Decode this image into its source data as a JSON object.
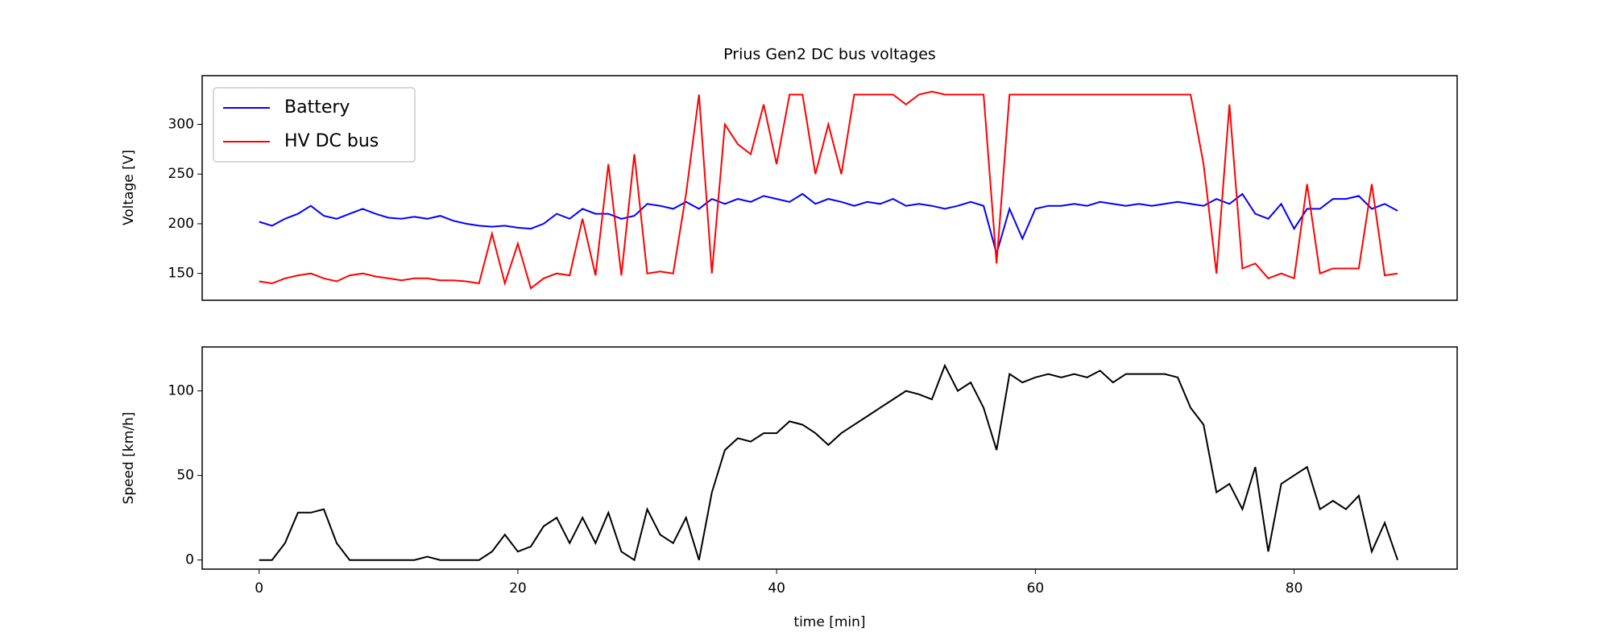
{
  "chart_data": [
    {
      "type": "line",
      "title": "Prius Gen2 DC bus voltages",
      "ylabel": "Voltage [V]",
      "x": [
        0,
        1,
        2,
        3,
        4,
        5,
        6,
        7,
        8,
        9,
        10,
        11,
        12,
        13,
        14,
        15,
        16,
        17,
        18,
        19,
        20,
        21,
        22,
        23,
        24,
        25,
        26,
        27,
        28,
        29,
        30,
        31,
        32,
        33,
        34,
        35,
        36,
        37,
        38,
        39,
        40,
        41,
        42,
        43,
        44,
        45,
        46,
        47,
        48,
        49,
        50,
        51,
        52,
        53,
        54,
        55,
        56,
        57,
        58,
        59,
        60,
        61,
        62,
        63,
        64,
        65,
        66,
        67,
        68,
        69,
        70,
        71,
        72,
        73,
        74,
        75,
        76,
        77,
        78,
        79,
        80,
        81,
        82,
        83,
        84,
        85,
        86,
        87,
        88
      ],
      "series": [
        {
          "name": "Battery",
          "color": "#0000ff",
          "values": [
            202,
            198,
            205,
            210,
            218,
            208,
            205,
            210,
            215,
            210,
            206,
            205,
            207,
            205,
            208,
            203,
            200,
            198,
            197,
            198,
            196,
            195,
            200,
            210,
            205,
            215,
            210,
            210,
            205,
            208,
            220,
            218,
            215,
            222,
            215,
            225,
            220,
            225,
            222,
            228,
            225,
            222,
            230,
            220,
            225,
            222,
            218,
            222,
            220,
            225,
            218,
            220,
            218,
            215,
            218,
            222,
            218,
            170,
            215,
            185,
            215,
            218,
            218,
            220,
            218,
            222,
            220,
            218,
            220,
            218,
            220,
            222,
            220,
            218,
            225,
            220,
            230,
            210,
            205,
            220,
            195,
            215,
            215,
            225,
            225,
            228,
            215,
            220,
            213
          ]
        },
        {
          "name": "HV DC bus",
          "color": "#ff0000",
          "values": [
            142,
            140,
            145,
            148,
            150,
            145,
            142,
            148,
            150,
            147,
            145,
            143,
            145,
            145,
            143,
            143,
            142,
            140,
            190,
            140,
            180,
            135,
            145,
            150,
            148,
            205,
            148,
            260,
            148,
            270,
            150,
            152,
            150,
            230,
            330,
            150,
            300,
            280,
            270,
            320,
            260,
            330,
            330,
            250,
            300,
            250,
            330,
            330,
            330,
            330,
            320,
            330,
            333,
            330,
            330,
            330,
            330,
            160,
            330,
            330,
            330,
            330,
            330,
            330,
            330,
            330,
            330,
            330,
            330,
            330,
            330,
            330,
            330,
            260,
            150,
            320,
            155,
            160,
            145,
            150,
            145,
            240,
            150,
            155,
            155,
            155,
            240,
            148,
            150
          ]
        }
      ],
      "xlim": [
        -4.4,
        92.6
      ],
      "ylim": [
        123,
        349
      ],
      "yticks": [
        150,
        200,
        250,
        300
      ],
      "legend": "upper left"
    },
    {
      "type": "line",
      "xlabel": "time [min]",
      "ylabel": "Speed [km/h]",
      "x": [
        0,
        1,
        2,
        3,
        4,
        5,
        6,
        7,
        8,
        9,
        10,
        11,
        12,
        13,
        14,
        15,
        16,
        17,
        18,
        19,
        20,
        21,
        22,
        23,
        24,
        25,
        26,
        27,
        28,
        29,
        30,
        31,
        32,
        33,
        34,
        35,
        36,
        37,
        38,
        39,
        40,
        41,
        42,
        43,
        44,
        45,
        46,
        47,
        48,
        49,
        50,
        51,
        52,
        53,
        54,
        55,
        56,
        57,
        58,
        59,
        60,
        61,
        62,
        63,
        64,
        65,
        66,
        67,
        68,
        69,
        70,
        71,
        72,
        73,
        74,
        75,
        76,
        77,
        78,
        79,
        80,
        81,
        82,
        83,
        84,
        85,
        86,
        87,
        88
      ],
      "series": [
        {
          "color": "#000000",
          "values": [
            0,
            0,
            10,
            28,
            28,
            30,
            10,
            0,
            0,
            0,
            0,
            0,
            0,
            2,
            0,
            0,
            0,
            0,
            5,
            15,
            5,
            8,
            20,
            25,
            10,
            25,
            10,
            28,
            5,
            0,
            30,
            15,
            10,
            25,
            0,
            40,
            65,
            72,
            70,
            75,
            75,
            82,
            80,
            75,
            68,
            75,
            80,
            85,
            90,
            95,
            100,
            98,
            95,
            115,
            100,
            105,
            90,
            65,
            110,
            105,
            108,
            110,
            108,
            110,
            108,
            112,
            105,
            110,
            110,
            110,
            110,
            108,
            90,
            80,
            40,
            45,
            30,
            55,
            5,
            45,
            50,
            55,
            30,
            35,
            30,
            38,
            5,
            22,
            0
          ]
        }
      ],
      "xlim": [
        -4.4,
        92.6
      ],
      "ylim": [
        -5.4,
        126
      ],
      "xticks": [
        0,
        20,
        40,
        60,
        80
      ],
      "yticks": [
        0,
        50,
        100
      ]
    }
  ]
}
